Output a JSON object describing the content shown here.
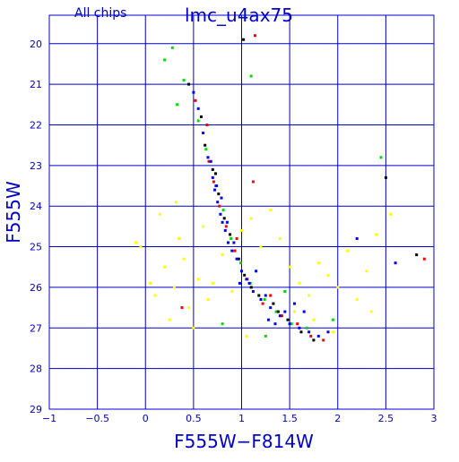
{
  "chart_data": {
    "type": "scatter",
    "subtitle": "All chips",
    "title": "lmc_u4ax75",
    "xlabel": "F555W−F814W",
    "ylabel": "F555W",
    "xlim": [
      -1,
      3
    ],
    "ylim": [
      29,
      19.3
    ],
    "y_inverted": true,
    "grid": true,
    "x_ticks": [
      -1,
      -0.5,
      0,
      0.5,
      1,
      1.5,
      2,
      2.5,
      3
    ],
    "x_tick_labels": [
      "−1",
      "−0.5",
      "0",
      "0.5",
      "1",
      "1.5",
      "2",
      "2.5",
      "3"
    ],
    "y_ticks": [
      20,
      21,
      22,
      23,
      24,
      25,
      26,
      27,
      28,
      29
    ],
    "y_tick_labels": [
      "20",
      "21",
      "22",
      "23",
      "24",
      "25",
      "26",
      "27",
      "28",
      "29"
    ],
    "series_colors": {
      "chip1": "#000000",
      "chip2": "#ff0000",
      "chip3": "#00dd00",
      "chip4": "#0000ff",
      "field": "#ffff00"
    },
    "series": [
      {
        "color": "#0000ff",
        "points": [
          [
            0.6,
            22.2
          ],
          [
            0.65,
            22.8
          ],
          [
            0.7,
            23.3
          ],
          [
            0.72,
            23.6
          ],
          [
            0.75,
            23.9
          ],
          [
            0.78,
            24.2
          ],
          [
            0.8,
            24.4
          ],
          [
            0.83,
            24.6
          ],
          [
            0.86,
            24.9
          ],
          [
            0.9,
            25.1
          ],
          [
            0.95,
            25.3
          ],
          [
            1.0,
            25.6
          ],
          [
            1.05,
            25.8
          ],
          [
            1.12,
            26.1
          ],
          [
            1.2,
            26.3
          ],
          [
            1.3,
            26.5
          ],
          [
            1.4,
            26.7
          ],
          [
            1.5,
            26.9
          ],
          [
            1.6,
            27.0
          ],
          [
            1.7,
            27.1
          ],
          [
            0.68,
            22.9
          ],
          [
            0.74,
            23.5
          ],
          [
            0.79,
            23.8
          ],
          [
            0.85,
            24.4
          ],
          [
            0.92,
            24.9
          ],
          [
            1.08,
            25.9
          ],
          [
            1.25,
            26.2
          ],
          [
            1.45,
            26.6
          ],
          [
            1.8,
            27.2
          ],
          [
            1.55,
            26.4
          ],
          [
            0.55,
            21.6
          ],
          [
            0.5,
            21.2
          ],
          [
            1.35,
            26.9
          ],
          [
            1.65,
            26.6
          ],
          [
            1.15,
            25.6
          ],
          [
            2.2,
            24.8
          ],
          [
            2.6,
            25.4
          ],
          [
            1.9,
            27.1
          ],
          [
            0.98,
            25.9
          ],
          [
            1.28,
            26.8
          ]
        ]
      },
      {
        "color": "#000000",
        "points": [
          [
            0.62,
            22.5
          ],
          [
            0.7,
            23.1
          ],
          [
            0.76,
            23.7
          ],
          [
            0.82,
            24.3
          ],
          [
            0.88,
            24.7
          ],
          [
            0.97,
            25.3
          ],
          [
            1.03,
            25.7
          ],
          [
            1.18,
            26.2
          ],
          [
            1.33,
            26.4
          ],
          [
            1.48,
            26.8
          ],
          [
            1.62,
            27.1
          ],
          [
            1.75,
            27.3
          ],
          [
            0.45,
            21.0
          ],
          [
            0.58,
            21.8
          ],
          [
            0.73,
            23.2
          ],
          [
            1.1,
            26.0
          ],
          [
            1.38,
            26.6
          ],
          [
            1.02,
            19.9
          ],
          [
            2.5,
            23.3
          ],
          [
            2.82,
            25.2
          ]
        ]
      },
      {
        "color": "#ff0000",
        "points": [
          [
            0.64,
            22.0
          ],
          [
            0.71,
            23.4
          ],
          [
            0.77,
            24.0
          ],
          [
            0.84,
            24.5
          ],
          [
            0.93,
            25.1
          ],
          [
            1.06,
            25.8
          ],
          [
            1.22,
            26.4
          ],
          [
            1.42,
            26.7
          ],
          [
            1.58,
            26.9
          ],
          [
            1.72,
            27.2
          ],
          [
            0.52,
            21.4
          ],
          [
            1.14,
            19.8
          ],
          [
            0.66,
            22.9
          ],
          [
            1.3,
            26.2
          ],
          [
            0.95,
            24.8
          ],
          [
            1.85,
            27.3
          ],
          [
            2.9,
            25.3
          ],
          [
            0.38,
            26.5
          ],
          [
            1.12,
            23.4
          ]
        ]
      },
      {
        "color": "#00dd00",
        "points": [
          [
            0.55,
            21.9
          ],
          [
            0.63,
            22.6
          ],
          [
            0.73,
            23.5
          ],
          [
            0.81,
            24.1
          ],
          [
            0.89,
            24.8
          ],
          [
            0.99,
            25.4
          ],
          [
            1.09,
            25.9
          ],
          [
            1.24,
            26.3
          ],
          [
            1.36,
            26.6
          ],
          [
            1.52,
            26.9
          ],
          [
            1.68,
            27.0
          ],
          [
            0.4,
            20.9
          ],
          [
            0.2,
            20.4
          ],
          [
            1.1,
            20.8
          ],
          [
            0.33,
            21.5
          ],
          [
            1.45,
            26.1
          ],
          [
            1.95,
            26.8
          ],
          [
            2.45,
            22.8
          ],
          [
            0.8,
            26.9
          ],
          [
            1.25,
            27.2
          ],
          [
            0.28,
            20.1
          ]
        ]
      },
      {
        "color": "#ffff00",
        "points": [
          [
            -0.05,
            25.0
          ],
          [
            0.15,
            24.2
          ],
          [
            0.2,
            25.5
          ],
          [
            0.3,
            26.0
          ],
          [
            0.4,
            25.3
          ],
          [
            0.45,
            26.5
          ],
          [
            0.35,
            24.8
          ],
          [
            0.55,
            25.8
          ],
          [
            0.65,
            26.3
          ],
          [
            0.5,
            27.0
          ],
          [
            0.1,
            26.2
          ],
          [
            0.25,
            26.8
          ],
          [
            1.0,
            24.6
          ],
          [
            1.2,
            25.0
          ],
          [
            1.4,
            24.8
          ],
          [
            1.5,
            25.5
          ],
          [
            1.6,
            25.9
          ],
          [
            1.7,
            26.2
          ],
          [
            1.8,
            25.4
          ],
          [
            1.9,
            25.7
          ],
          [
            2.0,
            26.0
          ],
          [
            2.1,
            25.1
          ],
          [
            2.2,
            26.3
          ],
          [
            2.3,
            25.6
          ],
          [
            2.4,
            24.7
          ],
          [
            1.3,
            24.1
          ],
          [
            1.1,
            24.3
          ],
          [
            0.7,
            25.9
          ],
          [
            0.8,
            25.2
          ],
          [
            0.9,
            26.1
          ],
          [
            1.55,
            26.6
          ],
          [
            1.75,
            26.8
          ],
          [
            1.95,
            27.1
          ],
          [
            2.35,
            26.6
          ],
          [
            0.6,
            24.5
          ],
          [
            0.05,
            25.9
          ],
          [
            0.32,
            23.9
          ],
          [
            2.55,
            24.2
          ],
          [
            -0.1,
            24.9
          ],
          [
            1.05,
            27.2
          ]
        ]
      }
    ]
  }
}
